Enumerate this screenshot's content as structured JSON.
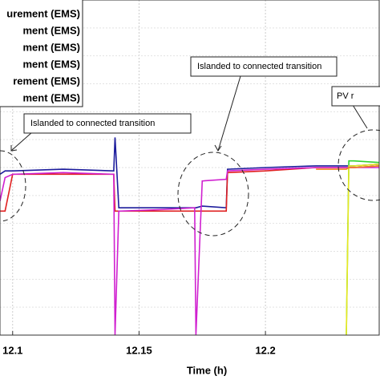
{
  "chart_data": {
    "type": "line",
    "x_label": "Time (h)",
    "x": [
      12.095,
      12.097,
      12.1,
      12.12,
      12.14,
      12.1405,
      12.142,
      12.16,
      12.172,
      12.1725,
      12.175,
      12.1845,
      12.185,
      12.2,
      12.22,
      12.232,
      12.233,
      12.235,
      12.245
    ],
    "xlim": [
      12.095,
      12.245
    ],
    "xticks": [
      12.1,
      12.15,
      12.2
    ],
    "ylim": [
      0,
      100
    ],
    "grid": true,
    "series": [
      {
        "name": "urement (EMS)",
        "color": "#1c1c9c",
        "values": [
          48,
          49,
          49,
          49.5,
          49,
          59,
          38,
          38,
          38,
          38,
          38.5,
          38,
          49.5,
          50,
          50.5,
          50.5,
          50.5,
          50.5,
          51
        ]
      },
      {
        "name": "ment (EMS)",
        "color": "#e02020",
        "values": [
          37,
          37,
          48,
          48,
          48,
          37,
          37,
          37,
          37,
          37,
          37,
          37,
          48.5,
          49,
          50,
          50,
          50,
          50,
          50.5
        ]
      },
      {
        "name": "ment (EMS)",
        "color": "#d020d0",
        "values": [
          40,
          47,
          48,
          48.5,
          48,
          0,
          37,
          37.5,
          38,
          0,
          46,
          46.5,
          49,
          49.5,
          50,
          50,
          50,
          50,
          50
        ]
      },
      {
        "name": "ment (EMS)",
        "color": "#30d030",
        "values": [
          null,
          null,
          null,
          null,
          null,
          null,
          null,
          null,
          null,
          null,
          null,
          null,
          null,
          null,
          null,
          0,
          52,
          52,
          51.5
        ]
      },
      {
        "name": "rement (EMS)",
        "color": "#e8e820",
        "values": [
          null,
          null,
          null,
          null,
          null,
          null,
          null,
          null,
          null,
          null,
          null,
          null,
          null,
          null,
          null,
          0,
          50.5,
          50.5,
          51
        ]
      },
      {
        "name": "ment (EMS)",
        "color": "#f08020",
        "values": [
          null,
          null,
          null,
          null,
          null,
          null,
          null,
          null,
          null,
          null,
          null,
          null,
          null,
          null,
          49.5,
          49.5,
          50,
          50,
          50.5
        ]
      }
    ],
    "annotations": [
      "Islanded to connected transition",
      "Islanded to connected transition",
      "PV r"
    ]
  }
}
